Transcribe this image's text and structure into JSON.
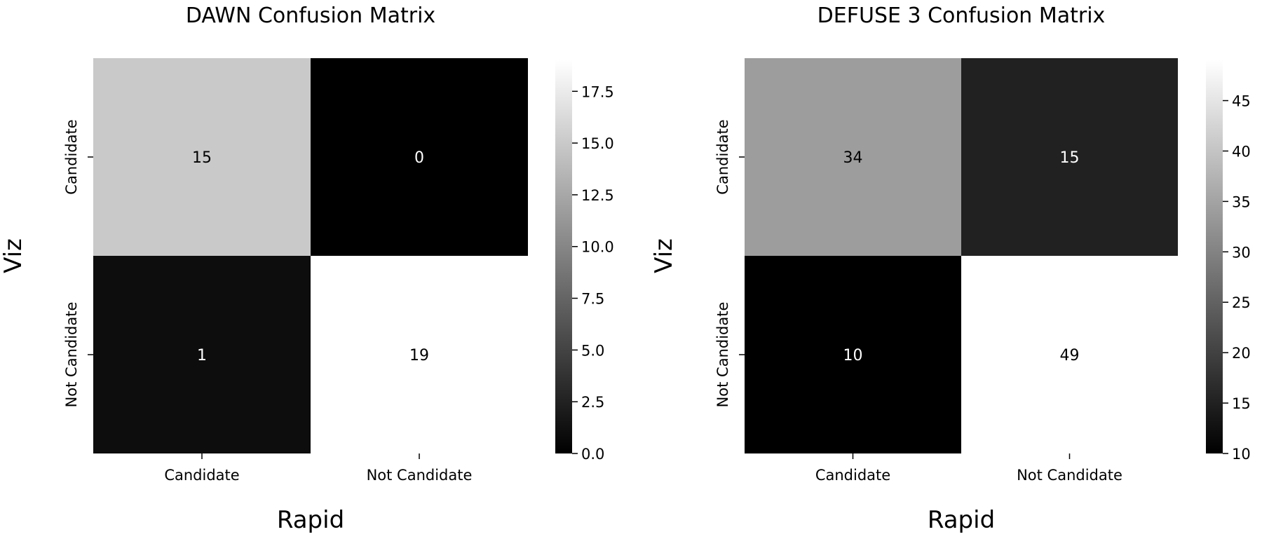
{
  "chart_data": [
    {
      "type": "heatmap",
      "title": "DAWN Confusion Matrix",
      "xlabel": "Rapid",
      "ylabel": "Viz",
      "x_categories": [
        "Candidate",
        "Not Candidate"
      ],
      "y_categories": [
        "Candidate",
        "Not Candidate"
      ],
      "values": [
        [
          15,
          0
        ],
        [
          1,
          19
        ]
      ],
      "colormap": "gray",
      "colorbar": {
        "range": [
          0,
          19
        ],
        "ticks": [
          0.0,
          2.5,
          5.0,
          7.5,
          10.0,
          12.5,
          15.0,
          17.5
        ],
        "tick_labels": [
          "0.0",
          "2.5",
          "5.0",
          "7.5",
          "10.0",
          "12.5",
          "15.0",
          "17.5"
        ]
      }
    },
    {
      "type": "heatmap",
      "title": "DEFUSE 3 Confusion Matrix",
      "xlabel": "Rapid",
      "ylabel": "Viz",
      "x_categories": [
        "Candidate",
        "Not Candidate"
      ],
      "y_categories": [
        "Candidate",
        "Not Candidate"
      ],
      "values": [
        [
          34,
          15
        ],
        [
          10,
          49
        ]
      ],
      "colormap": "gray",
      "colorbar": {
        "range": [
          10,
          49
        ],
        "ticks": [
          10,
          15,
          20,
          25,
          30,
          35,
          40,
          45
        ],
        "tick_labels": [
          "10",
          "15",
          "20",
          "25",
          "30",
          "35",
          "40",
          "45"
        ]
      }
    }
  ]
}
